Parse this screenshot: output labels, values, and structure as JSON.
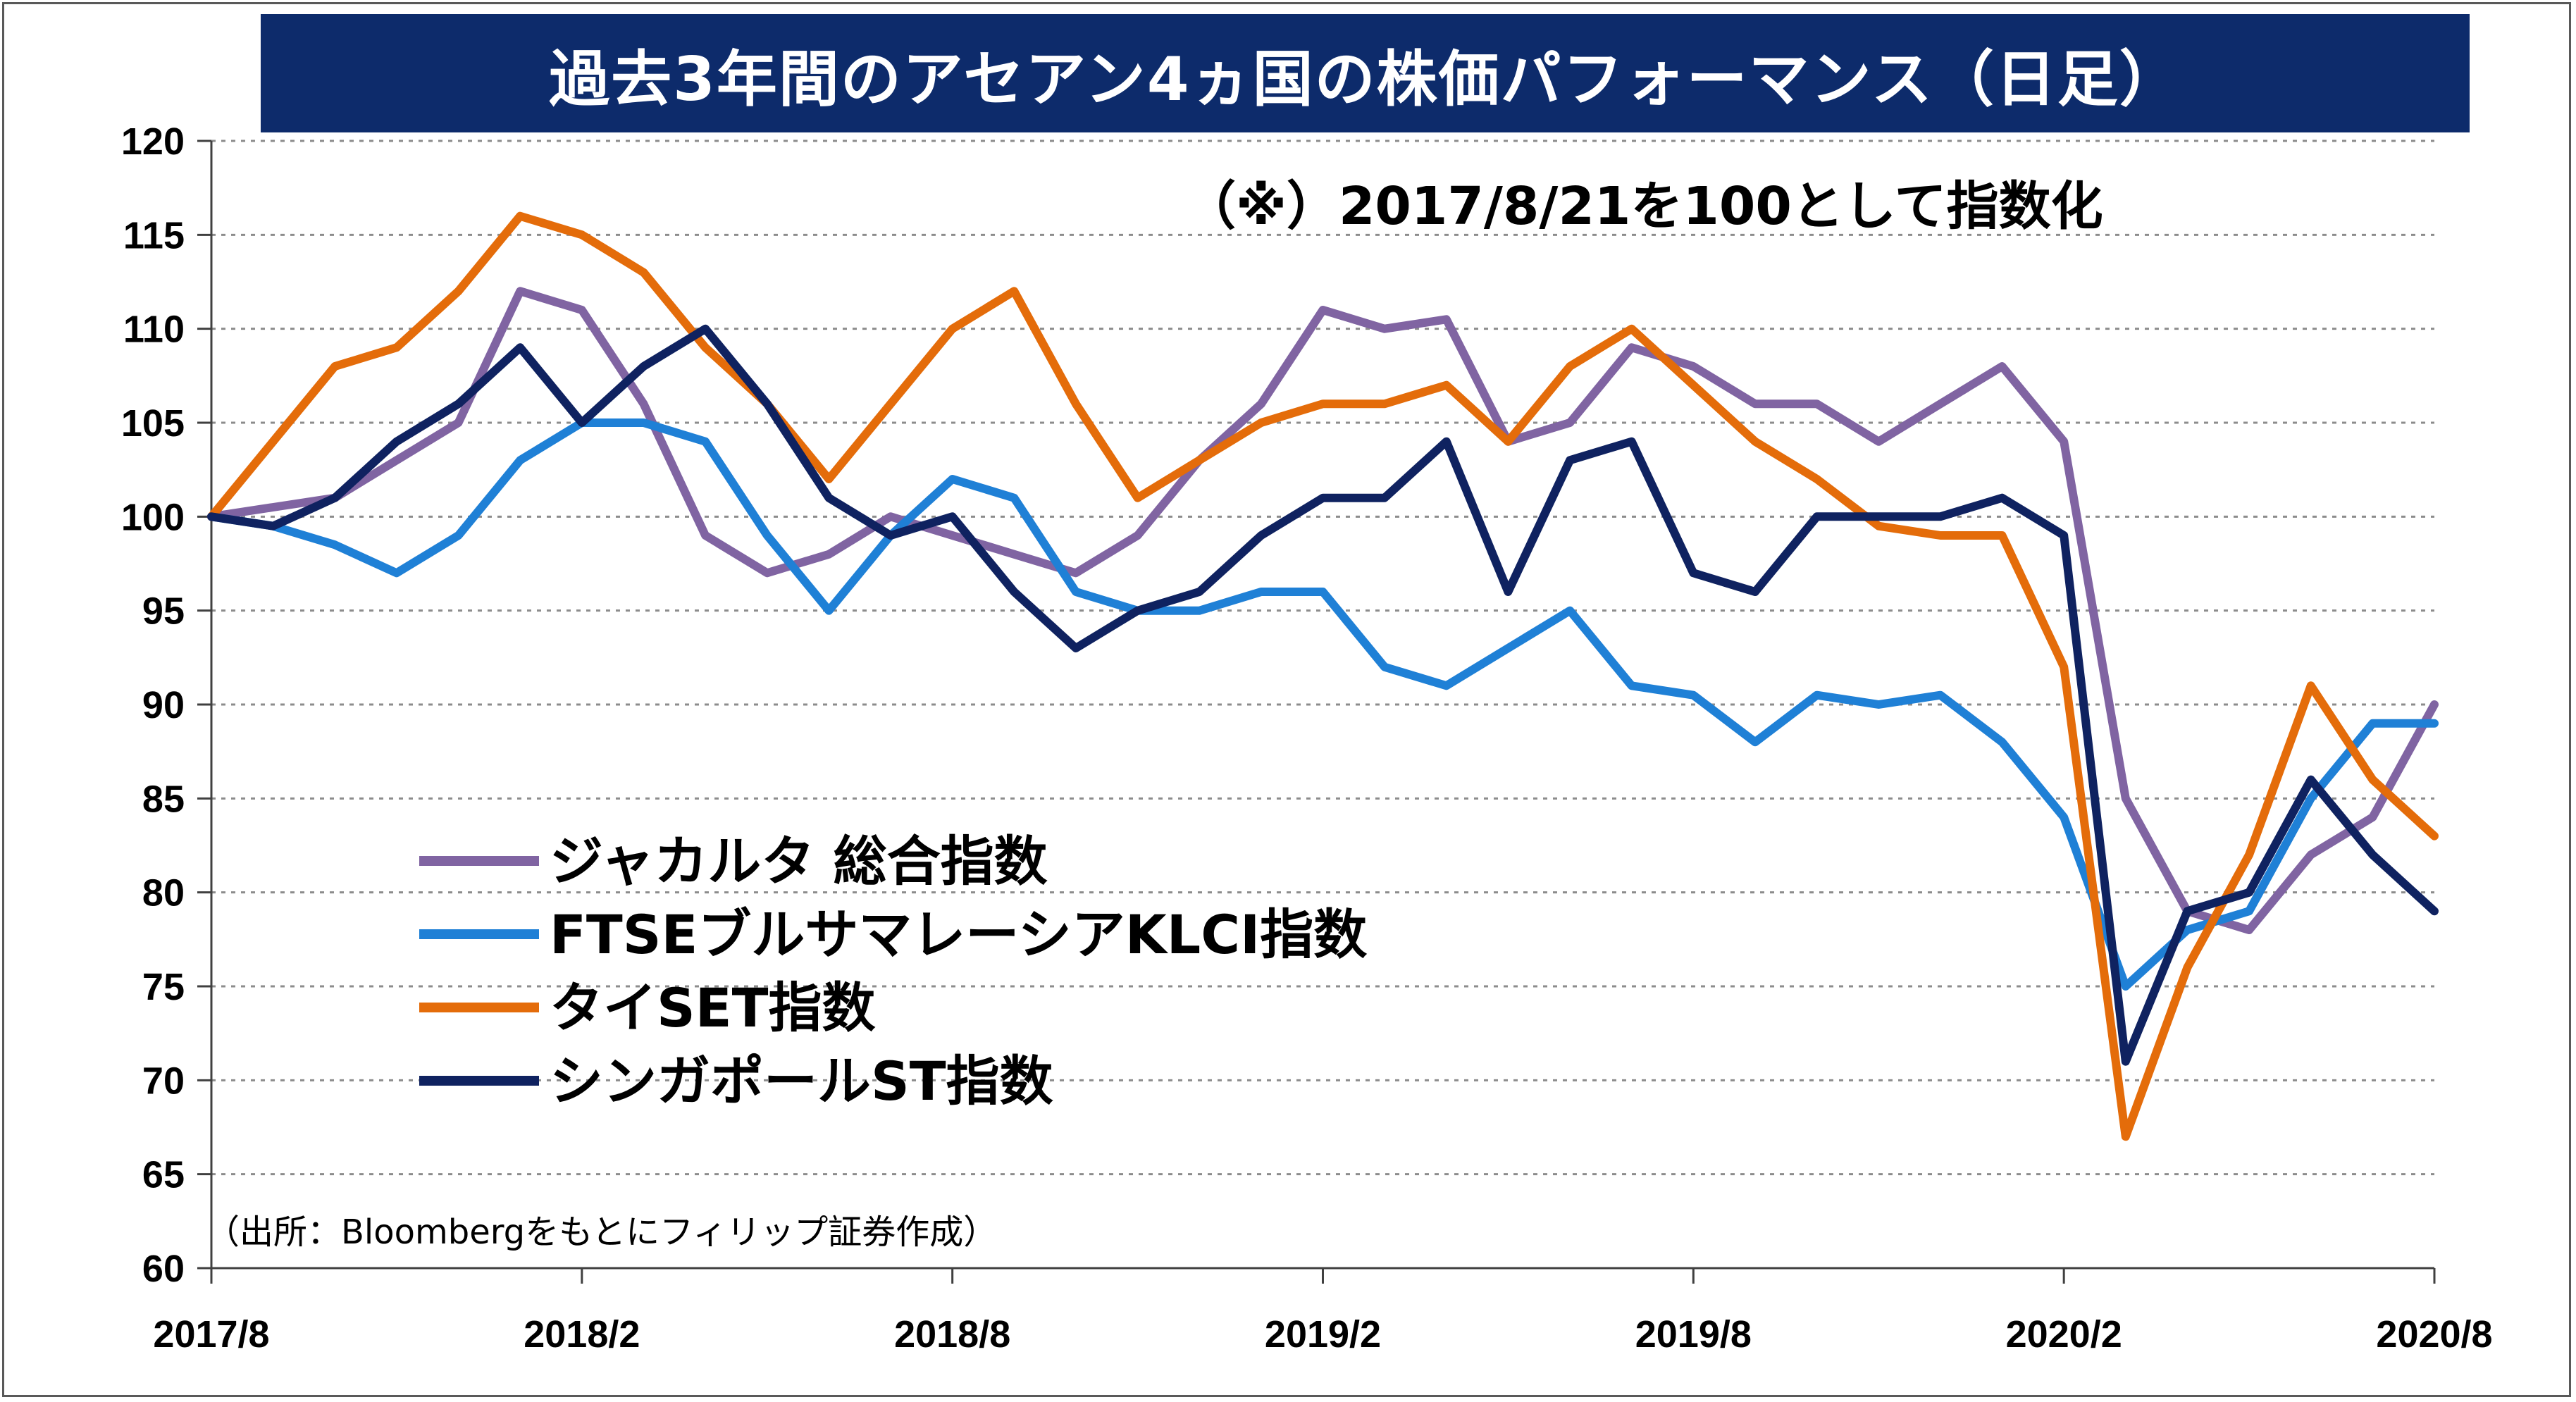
{
  "title": "過去3年間のアセアン4ヵ国の株価パフォーマンス（日足）",
  "note": "（※）2017/8/21を100として指数化",
  "source": "（出所：Bloombergをもとにフィリップ証券作成）",
  "chart_data": {
    "type": "line",
    "xlabel": "",
    "ylabel": "",
    "ylim": [
      60,
      120
    ],
    "yticks": [
      "60",
      "65",
      "70",
      "75",
      "80",
      "85",
      "90",
      "95",
      "100",
      "105",
      "110",
      "115",
      "120"
    ],
    "xticks": [
      "2017/8",
      "2018/2",
      "2018/8",
      "2019/2",
      "2019/8",
      "2020/2",
      "2020/8"
    ],
    "x": [
      "2017/8",
      "2017/9",
      "2017/10",
      "2017/11",
      "2017/12",
      "2018/1",
      "2018/2",
      "2018/3",
      "2018/4",
      "2018/5",
      "2018/6",
      "2018/7",
      "2018/8",
      "2018/9",
      "2018/10",
      "2018/11",
      "2018/12",
      "2019/1",
      "2019/2",
      "2019/3",
      "2019/4",
      "2019/5",
      "2019/6",
      "2019/7",
      "2019/8",
      "2019/9",
      "2019/10",
      "2019/11",
      "2019/12",
      "2020/1",
      "2020/2",
      "2020/3",
      "2020/4",
      "2020/5",
      "2020/6",
      "2020/7",
      "2020/8"
    ],
    "grid": true,
    "legend_position": "left",
    "series": [
      {
        "name": "ジャカルタ 総合指数",
        "color": "#8064a2",
        "values": [
          100,
          100.5,
          101,
          103,
          105,
          112,
          111,
          106,
          99,
          97,
          98,
          100,
          99,
          98,
          97,
          99,
          103,
          106,
          111,
          110,
          110.5,
          104,
          105,
          109,
          108,
          106,
          106,
          104,
          106,
          108,
          104,
          85,
          79,
          78,
          82,
          84,
          90
        ]
      },
      {
        "name": "FTSEブルサマレーシアKLCI指数",
        "color": "#1f80d6",
        "values": [
          100,
          99.5,
          98.5,
          97,
          99,
          103,
          105,
          105,
          104,
          99,
          95,
          99,
          102,
          101,
          96,
          95,
          95,
          96,
          96,
          92,
          91,
          93,
          95,
          91,
          90.5,
          88,
          90.5,
          90,
          90.5,
          88,
          84,
          75,
          78,
          79,
          85,
          89,
          89
        ]
      },
      {
        "name": "タイSET指数",
        "color": "#e46c0a",
        "values": [
          100,
          104,
          108,
          109,
          112,
          116,
          115,
          113,
          109,
          106,
          102,
          106,
          110,
          112,
          106,
          101,
          103,
          105,
          106,
          106,
          107,
          104,
          108,
          110,
          107,
          104,
          102,
          99.5,
          99,
          99,
          92,
          67,
          76,
          82,
          91,
          86,
          83
        ]
      },
      {
        "name": "シンガポールST指数",
        "color": "#0f2260",
        "values": [
          100,
          99.5,
          101,
          104,
          106,
          109,
          105,
          108,
          110,
          106,
          101,
          99,
          100,
          96,
          93,
          95,
          96,
          99,
          101,
          101,
          104,
          96,
          103,
          104,
          97,
          96,
          100,
          100,
          100,
          101,
          99,
          71,
          79,
          80,
          86,
          82,
          79
        ]
      }
    ]
  }
}
